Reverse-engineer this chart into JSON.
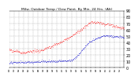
{
  "title": "Milw. Outdoor Temp / Dew Point. By Min. 24 Hrs. (Alt)",
  "bg_color": "#ffffff",
  "plot_bg": "#ffffff",
  "grid_color": "#aaaaaa",
  "temp_color": "#ff0000",
  "dew_color": "#0000cc",
  "ylim": [
    0,
    90
  ],
  "ylabel_fontsize": 3.5,
  "title_fontsize": 3.2,
  "num_points": 1440
}
